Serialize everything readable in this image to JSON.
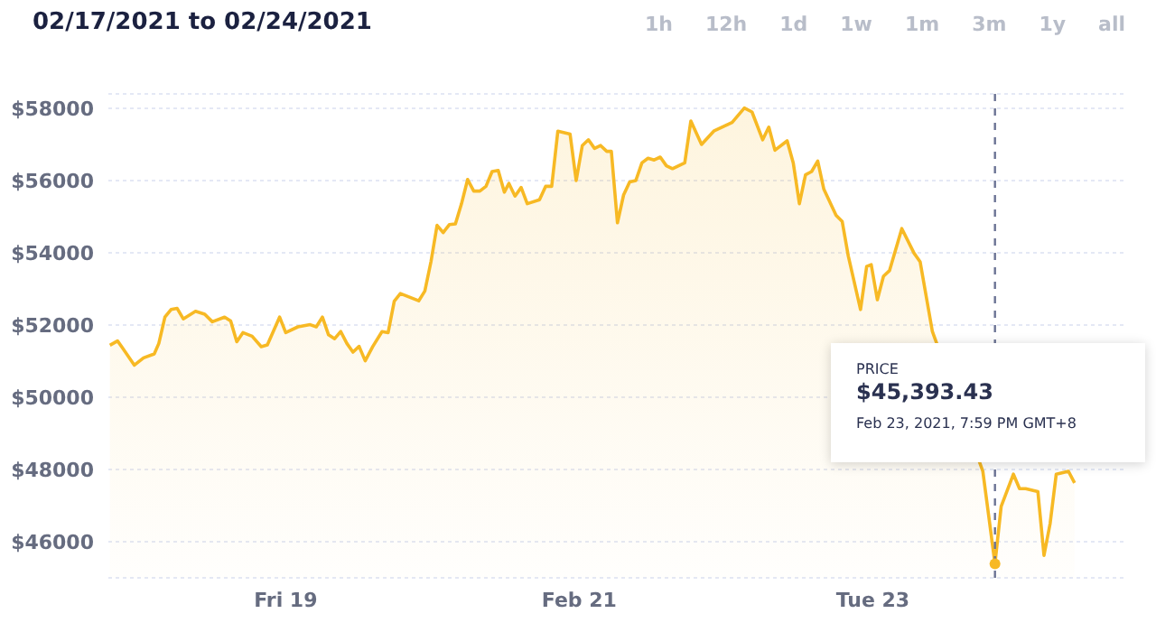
{
  "chart_data": {
    "type": "area",
    "title": "02/17/2021 to 02/24/2021",
    "x": [
      "2021-02-17T19:15",
      "2021-02-17T20:30",
      "2021-02-17T21:15",
      "2021-02-17T23:15",
      "2021-02-18T00:45",
      "2021-02-18T02:30",
      "2021-02-18T03:15",
      "2021-02-18T04:15",
      "2021-02-18T05:15",
      "2021-02-18T06:15",
      "2021-02-18T07:15",
      "2021-02-18T09:15",
      "2021-02-18T10:45",
      "2021-02-18T12:00",
      "2021-02-18T14:00",
      "2021-02-18T15:00",
      "2021-02-18T16:00",
      "2021-02-18T17:00",
      "2021-02-18T18:30",
      "2021-02-18T20:00",
      "2021-02-18T21:00",
      "2021-02-18T23:00",
      "2021-02-19T00:00",
      "2021-02-19T02:00",
      "2021-02-19T04:00",
      "2021-02-19T05:00",
      "2021-02-19T06:00",
      "2021-02-19T07:00",
      "2021-02-19T08:00",
      "2021-02-19T09:00",
      "2021-02-19T10:00",
      "2021-02-19T11:00",
      "2021-02-19T12:00",
      "2021-02-19T13:00",
      "2021-02-19T14:15",
      "2021-02-19T15:45",
      "2021-02-19T16:45",
      "2021-02-19T17:45",
      "2021-02-19T18:45",
      "2021-02-19T21:45",
      "2021-02-19T22:45",
      "2021-02-19T23:45",
      "2021-02-20T00:45",
      "2021-02-20T01:45",
      "2021-02-20T02:45",
      "2021-02-20T03:45",
      "2021-02-20T04:45",
      "2021-02-20T05:45",
      "2021-02-20T06:45",
      "2021-02-20T07:45",
      "2021-02-20T08:45",
      "2021-02-20T09:45",
      "2021-02-20T10:45",
      "2021-02-20T11:45",
      "2021-02-20T12:30",
      "2021-02-20T13:30",
      "2021-02-20T14:30",
      "2021-02-20T15:30",
      "2021-02-20T17:30",
      "2021-02-20T18:30",
      "2021-02-20T19:30",
      "2021-02-20T20:30",
      "2021-02-20T22:30",
      "2021-02-20T23:30",
      "2021-02-21T00:30",
      "2021-02-21T01:30",
      "2021-02-21T02:30",
      "2021-02-21T03:30",
      "2021-02-21T04:30",
      "2021-02-21T05:15",
      "2021-02-21T06:15",
      "2021-02-21T07:15",
      "2021-02-21T08:15",
      "2021-02-21T09:15",
      "2021-02-21T10:15",
      "2021-02-21T11:15",
      "2021-02-21T12:15",
      "2021-02-21T13:15",
      "2021-02-21T14:15",
      "2021-02-21T15:15",
      "2021-02-21T16:15",
      "2021-02-21T17:15",
      "2021-02-21T18:15",
      "2021-02-21T20:00",
      "2021-02-21T22:00",
      "2021-02-22T01:00",
      "2021-02-22T03:00",
      "2021-02-22T04:15",
      "2021-02-22T06:00",
      "2021-02-22T07:00",
      "2021-02-22T08:00",
      "2021-02-22T10:00",
      "2021-02-22T11:00",
      "2021-02-22T12:00",
      "2021-02-22T13:00",
      "2021-02-22T14:00",
      "2021-02-22T15:00",
      "2021-02-22T16:00",
      "2021-02-22T18:00",
      "2021-02-22T19:00",
      "2021-02-22T20:00",
      "2021-02-22T22:00",
      "2021-02-22T23:00",
      "2021-02-22T23:45",
      "2021-02-23T00:45",
      "2021-02-23T01:45",
      "2021-02-23T02:45",
      "2021-02-23T04:45",
      "2021-02-23T06:45",
      "2021-02-23T07:45",
      "2021-02-23T09:45",
      "2021-02-23T18:00",
      "2021-02-23T19:00",
      "2021-02-23T19:59",
      "2021-02-23T21:00",
      "2021-02-23T23:00",
      "2021-02-24T00:00",
      "2021-02-24T01:00",
      "2021-02-24T03:00",
      "2021-02-24T04:00",
      "2021-02-24T05:00",
      "2021-02-24T06:00",
      "2021-02-24T08:00",
      "2021-02-24T09:00"
    ],
    "values": [
      51440,
      51560,
      51380,
      50890,
      51090,
      51200,
      51490,
      52220,
      52430,
      52460,
      52170,
      52380,
      52300,
      52090,
      52220,
      52110,
      51540,
      51790,
      51690,
      51400,
      51450,
      52220,
      51790,
      51950,
      52010,
      51950,
      52220,
      51730,
      51620,
      51820,
      51490,
      51250,
      51410,
      51010,
      51410,
      51820,
      51790,
      52660,
      52870,
      52670,
      52940,
      53750,
      54760,
      54560,
      54780,
      54800,
      55360,
      56030,
      55710,
      55710,
      55840,
      56250,
      56280,
      55680,
      55920,
      55570,
      55810,
      55360,
      55470,
      55840,
      55840,
      57370,
      57290,
      56000,
      56970,
      57130,
      56890,
      56970,
      56810,
      56810,
      54830,
      55600,
      55960,
      56000,
      56490,
      56620,
      56570,
      56650,
      56410,
      56330,
      56410,
      56490,
      57650,
      57000,
      57370,
      57610,
      58010,
      57900,
      57130,
      57480,
      56840,
      57100,
      56490,
      55360,
      56160,
      56250,
      56540,
      55760,
      55040,
      54870,
      53910,
      52430,
      53620,
      53670,
      52700,
      53350,
      53510,
      54670,
      53990,
      53750,
      51820,
      47950,
      46660,
      45390,
      46980,
      47870,
      47470,
      47470,
      47390,
      45620,
      46500,
      47870,
      47950,
      47630
    ],
    "color": "#f7b924",
    "xlim": [
      "2021-02-17T19:00",
      "2021-02-24T17:00"
    ],
    "xticks": [
      {
        "value": "2021-02-19",
        "label": "Fri 19"
      },
      {
        "value": "2021-02-21",
        "label": "Feb 21"
      },
      {
        "value": "2021-02-23",
        "label": "Tue 23"
      }
    ],
    "ylim": [
      45000,
      58400
    ],
    "yticks": [
      {
        "value": 46000,
        "label": "$46000"
      },
      {
        "value": 48000,
        "label": "$48000"
      },
      {
        "value": 50000,
        "label": "$50000"
      },
      {
        "value": 52000,
        "label": "$52000"
      },
      {
        "value": 54000,
        "label": "$54000"
      },
      {
        "value": 56000,
        "label": "$56000"
      },
      {
        "value": 58000,
        "label": "$58000"
      }
    ],
    "grid": "y",
    "ref_lines": [
      {
        "axis": "x",
        "value": "2021-02-23T19:59",
        "color": "#6b7394",
        "line_style": "dashed"
      }
    ],
    "annotations": [
      "1h",
      "12h",
      "1d",
      "1w",
      "1m",
      "3m",
      "1y",
      "all",
      "PRICE",
      "$45,393.43",
      "Feb 23, 2021, 7:59 PM GMT+8"
    ]
  }
}
